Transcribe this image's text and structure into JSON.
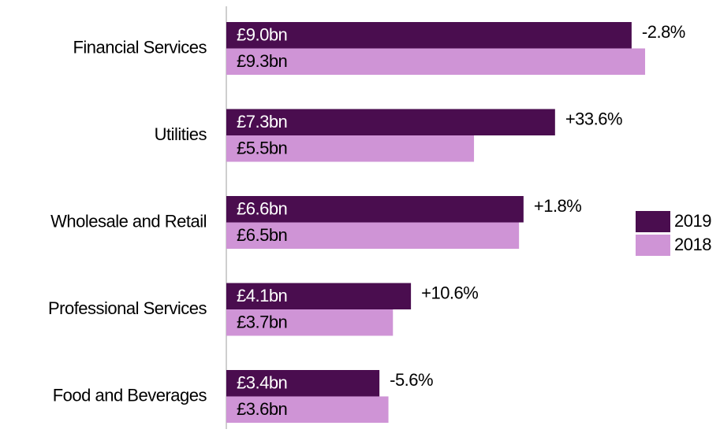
{
  "chart_data": {
    "type": "bar",
    "orientation": "horizontal",
    "categories": [
      "Financial Services",
      "Utilities",
      "Wholesale and Retail",
      "Professional Services",
      "Food and Beverages"
    ],
    "series": [
      {
        "name": "2019",
        "color": "#4a0d4f",
        "values": [
          9.0,
          7.3,
          6.6,
          4.1,
          3.4
        ],
        "value_labels": [
          "£9.0bn",
          "£7.3bn",
          "£6.6bn",
          "£4.1bn",
          "£3.4bn"
        ]
      },
      {
        "name": "2018",
        "color": "#cf94d6",
        "values": [
          9.3,
          5.5,
          6.5,
          3.7,
          3.6
        ],
        "value_labels": [
          "£9.3bn",
          "£5.5bn",
          "£6.5bn",
          "£3.7bn",
          "£3.6bn"
        ]
      }
    ],
    "annotations": [
      "-2.8%",
      "+33.6%",
      "+1.8%",
      "+10.6%",
      "-5.6%"
    ],
    "legend": "right"
  }
}
